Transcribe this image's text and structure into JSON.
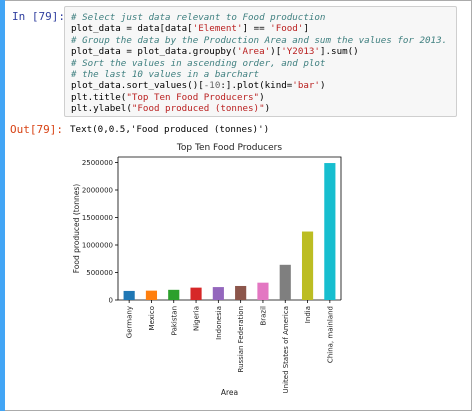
{
  "cell": {
    "in_prompt": "In [79]:",
    "out_prompt": "Out[79]:",
    "output_text": "Text(0,0.5,'Food produced (tonnes)')",
    "code_lines": [
      [
        {
          "t": "# Select just data relevant to Food production",
          "k": "c"
        }
      ],
      [
        {
          "t": "plot_data = data[data[",
          "k": ""
        },
        {
          "t": "'Element'",
          "k": "s"
        },
        {
          "t": "] == ",
          "k": ""
        },
        {
          "t": "'Food'",
          "k": "s"
        },
        {
          "t": "]",
          "k": ""
        }
      ],
      [
        {
          "t": "# Group the data by the Production Area and sum the values for 2013.",
          "k": "c"
        }
      ],
      [
        {
          "t": "plot_data = plot_data.groupby(",
          "k": ""
        },
        {
          "t": "'Area'",
          "k": "s"
        },
        {
          "t": ")[",
          "k": ""
        },
        {
          "t": "'Y2013'",
          "k": "s"
        },
        {
          "t": "].sum()",
          "k": ""
        }
      ],
      [
        {
          "t": "# Sort the values in ascending order, and plot",
          "k": "c"
        }
      ],
      [
        {
          "t": "# the last 10 values in a barchart",
          "k": "c"
        }
      ],
      [
        {
          "t": "plot_data.sort_values()[",
          "k": ""
        },
        {
          "t": "-10",
          "k": "n"
        },
        {
          "t": ":].plot(kind=",
          "k": ""
        },
        {
          "t": "'bar'",
          "k": "s"
        },
        {
          "t": ")",
          "k": ""
        }
      ],
      [
        {
          "t": "plt.title(",
          "k": ""
        },
        {
          "t": "\"Top Ten Food Producers\"",
          "k": "s"
        },
        {
          "t": ")",
          "k": ""
        }
      ],
      [
        {
          "t": "plt.ylabel(",
          "k": ""
        },
        {
          "t": "\"Food produced (tonnes)\"",
          "k": "s"
        },
        {
          "t": ")",
          "k": ""
        }
      ]
    ]
  },
  "chart_data": {
    "type": "bar",
    "title": "Top Ten Food Producers",
    "xlabel": "Area",
    "ylabel": "Food produced (tonnes)",
    "ylim": [
      0,
      2600000
    ],
    "yticks": [
      0,
      500000,
      1000000,
      1500000,
      2000000,
      2500000
    ],
    "ytick_labels": [
      "0",
      "500000",
      "1000000",
      "1500000",
      "2000000",
      "2500000"
    ],
    "categories": [
      "Germany",
      "Mexico",
      "Pakistan",
      "Nigeria",
      "Indonesia",
      "Russian Federation",
      "Brazil",
      "United States of America",
      "India",
      "China, mainland"
    ],
    "values": [
      165000,
      170000,
      185000,
      225000,
      235000,
      255000,
      315000,
      640000,
      1245000,
      2490000
    ],
    "colors": [
      "#1f77b4",
      "#ff7f0e",
      "#2ca02c",
      "#d62728",
      "#9467bd",
      "#8c564b",
      "#e377c2",
      "#7f7f7f",
      "#bcbd22",
      "#17becf"
    ],
    "grid": false,
    "legend": "none"
  }
}
